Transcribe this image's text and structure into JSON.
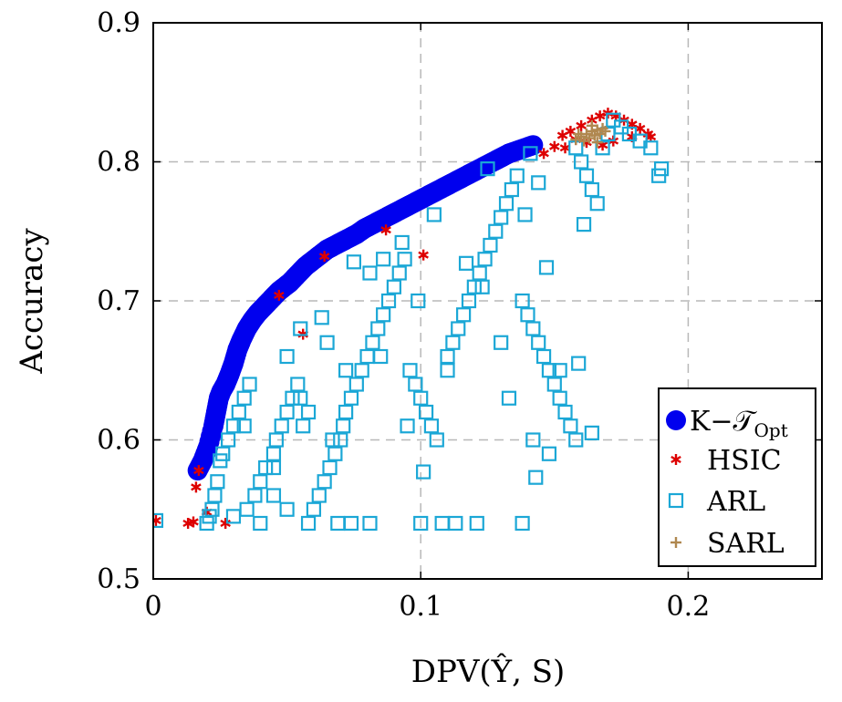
{
  "chart_data": {
    "type": "scatter",
    "xlabel": "DPV(Ŷ, S)",
    "ylabel": "Accuracy",
    "xlim": [
      0,
      0.25
    ],
    "ylim": [
      0.5,
      0.9
    ],
    "x_ticks": [
      "0",
      "0.1",
      "0.2"
    ],
    "x_tick_values": [
      0,
      0.1,
      0.2
    ],
    "y_ticks": [
      "0.5",
      "0.6",
      "0.7",
      "0.8",
      "0.9"
    ],
    "y_tick_values": [
      0.5,
      0.6,
      0.7,
      0.8,
      0.9
    ],
    "grid": true,
    "legend_position": "bottom-right",
    "series": [
      {
        "name": "K−T_Opt",
        "legend_label": "K−𝒯",
        "legend_subscript": "Opt",
        "marker": "circle",
        "color": "#0000ee",
        "points": [
          [
            0.0166,
            0.578
          ],
          [
            0.0185,
            0.585
          ],
          [
            0.0205,
            0.595
          ],
          [
            0.0225,
            0.61
          ],
          [
            0.0235,
            0.62
          ],
          [
            0.0245,
            0.63
          ],
          [
            0.0255,
            0.635
          ],
          [
            0.027,
            0.64
          ],
          [
            0.0285,
            0.647
          ],
          [
            0.03,
            0.655
          ],
          [
            0.0315,
            0.665
          ],
          [
            0.033,
            0.672
          ],
          [
            0.035,
            0.68
          ],
          [
            0.037,
            0.686
          ],
          [
            0.039,
            0.691
          ],
          [
            0.041,
            0.695
          ],
          [
            0.043,
            0.699
          ],
          [
            0.045,
            0.703
          ],
          [
            0.047,
            0.707
          ],
          [
            0.049,
            0.71
          ],
          [
            0.051,
            0.713
          ],
          [
            0.053,
            0.717
          ],
          [
            0.055,
            0.721
          ],
          [
            0.057,
            0.725
          ],
          [
            0.059,
            0.728
          ],
          [
            0.061,
            0.731
          ],
          [
            0.063,
            0.734
          ],
          [
            0.065,
            0.737
          ],
          [
            0.067,
            0.739
          ],
          [
            0.07,
            0.742
          ],
          [
            0.073,
            0.745
          ],
          [
            0.076,
            0.748
          ],
          [
            0.079,
            0.752
          ],
          [
            0.082,
            0.755
          ],
          [
            0.085,
            0.758
          ],
          [
            0.088,
            0.761
          ],
          [
            0.091,
            0.764
          ],
          [
            0.094,
            0.767
          ],
          [
            0.097,
            0.77
          ],
          [
            0.1,
            0.773
          ],
          [
            0.103,
            0.776
          ],
          [
            0.106,
            0.779
          ],
          [
            0.109,
            0.782
          ],
          [
            0.112,
            0.785
          ],
          [
            0.115,
            0.788
          ],
          [
            0.118,
            0.791
          ],
          [
            0.121,
            0.794
          ],
          [
            0.124,
            0.797
          ],
          [
            0.127,
            0.8
          ],
          [
            0.13,
            0.803
          ],
          [
            0.133,
            0.806
          ],
          [
            0.136,
            0.808
          ],
          [
            0.139,
            0.81
          ],
          [
            0.142,
            0.812
          ]
        ]
      },
      {
        "name": "HSIC",
        "marker": "star",
        "color": "#dd0000",
        "points": [
          [
            0.001,
            0.542
          ],
          [
            0.013,
            0.54
          ],
          [
            0.015,
            0.541
          ],
          [
            0.016,
            0.566
          ],
          [
            0.017,
            0.578
          ],
          [
            0.02,
            0.548
          ],
          [
            0.027,
            0.54
          ],
          [
            0.047,
            0.704
          ],
          [
            0.056,
            0.676
          ],
          [
            0.064,
            0.732
          ],
          [
            0.087,
            0.751
          ],
          [
            0.101,
            0.733
          ],
          [
            0.146,
            0.806
          ],
          [
            0.15,
            0.811
          ],
          [
            0.153,
            0.819
          ],
          [
            0.156,
            0.822
          ],
          [
            0.16,
            0.826
          ],
          [
            0.164,
            0.83
          ],
          [
            0.167,
            0.833
          ],
          [
            0.17,
            0.835
          ],
          [
            0.173,
            0.833
          ],
          [
            0.176,
            0.83
          ],
          [
            0.179,
            0.827
          ],
          [
            0.182,
            0.824
          ],
          [
            0.185,
            0.82
          ],
          [
            0.172,
            0.815
          ],
          [
            0.168,
            0.812
          ],
          [
            0.162,
            0.814
          ],
          [
            0.158,
            0.816
          ],
          [
            0.179,
            0.818
          ],
          [
            0.154,
            0.81
          ],
          [
            0.186,
            0.818
          ]
        ]
      },
      {
        "name": "ARL",
        "marker": "square",
        "color": "#1ba7d6",
        "points": [
          [
            0.001,
            0.542
          ],
          [
            0.02,
            0.54
          ],
          [
            0.021,
            0.545
          ],
          [
            0.022,
            0.55
          ],
          [
            0.023,
            0.56
          ],
          [
            0.024,
            0.57
          ],
          [
            0.025,
            0.585
          ],
          [
            0.026,
            0.59
          ],
          [
            0.028,
            0.6
          ],
          [
            0.03,
            0.61
          ],
          [
            0.032,
            0.62
          ],
          [
            0.034,
            0.63
          ],
          [
            0.036,
            0.64
          ],
          [
            0.038,
            0.56
          ],
          [
            0.04,
            0.57
          ],
          [
            0.042,
            0.58
          ],
          [
            0.045,
            0.59
          ],
          [
            0.046,
            0.6
          ],
          [
            0.048,
            0.61
          ],
          [
            0.05,
            0.62
          ],
          [
            0.052,
            0.63
          ],
          [
            0.054,
            0.64
          ],
          [
            0.056,
            0.61
          ],
          [
            0.058,
            0.54
          ],
          [
            0.06,
            0.55
          ],
          [
            0.062,
            0.56
          ],
          [
            0.064,
            0.57
          ],
          [
            0.066,
            0.58
          ],
          [
            0.068,
            0.59
          ],
          [
            0.07,
            0.6
          ],
          [
            0.071,
            0.61
          ],
          [
            0.072,
            0.62
          ],
          [
            0.074,
            0.63
          ],
          [
            0.076,
            0.64
          ],
          [
            0.078,
            0.65
          ],
          [
            0.08,
            0.66
          ],
          [
            0.082,
            0.67
          ],
          [
            0.084,
            0.68
          ],
          [
            0.086,
            0.69
          ],
          [
            0.088,
            0.7
          ],
          [
            0.09,
            0.71
          ],
          [
            0.092,
            0.72
          ],
          [
            0.094,
            0.73
          ],
          [
            0.096,
            0.65
          ],
          [
            0.098,
            0.64
          ],
          [
            0.1,
            0.63
          ],
          [
            0.102,
            0.62
          ],
          [
            0.104,
            0.61
          ],
          [
            0.106,
            0.6
          ],
          [
            0.108,
            0.54
          ],
          [
            0.11,
            0.66
          ],
          [
            0.112,
            0.67
          ],
          [
            0.114,
            0.68
          ],
          [
            0.116,
            0.69
          ],
          [
            0.118,
            0.7
          ],
          [
            0.12,
            0.71
          ],
          [
            0.122,
            0.72
          ],
          [
            0.124,
            0.73
          ],
          [
            0.126,
            0.74
          ],
          [
            0.128,
            0.75
          ],
          [
            0.13,
            0.76
          ],
          [
            0.132,
            0.77
          ],
          [
            0.134,
            0.78
          ],
          [
            0.136,
            0.79
          ],
          [
            0.138,
            0.7
          ],
          [
            0.14,
            0.69
          ],
          [
            0.142,
            0.68
          ],
          [
            0.144,
            0.67
          ],
          [
            0.146,
            0.66
          ],
          [
            0.148,
            0.65
          ],
          [
            0.15,
            0.64
          ],
          [
            0.152,
            0.63
          ],
          [
            0.154,
            0.62
          ],
          [
            0.156,
            0.61
          ],
          [
            0.158,
            0.6
          ],
          [
            0.16,
            0.8
          ],
          [
            0.162,
            0.79
          ],
          [
            0.164,
            0.78
          ],
          [
            0.166,
            0.77
          ],
          [
            0.168,
            0.81
          ],
          [
            0.17,
            0.82
          ],
          [
            0.172,
            0.83
          ],
          [
            0.175,
            0.825
          ],
          [
            0.178,
            0.82
          ],
          [
            0.182,
            0.815
          ],
          [
            0.186,
            0.81
          ],
          [
            0.189,
            0.79
          ],
          [
            0.19,
            0.795
          ],
          [
            0.075,
            0.728
          ],
          [
            0.081,
            0.72
          ],
          [
            0.086,
            0.73
          ],
          [
            0.093,
            0.742
          ],
          [
            0.099,
            0.7
          ],
          [
            0.105,
            0.762
          ],
          [
            0.117,
            0.727
          ],
          [
            0.125,
            0.795
          ],
          [
            0.141,
            0.806
          ],
          [
            0.158,
            0.81
          ],
          [
            0.164,
            0.605
          ],
          [
            0.142,
            0.6
          ],
          [
            0.148,
            0.59
          ],
          [
            0.101,
            0.577
          ],
          [
            0.063,
            0.688
          ],
          [
            0.05,
            0.66
          ],
          [
            0.055,
            0.68
          ],
          [
            0.034,
            0.61
          ],
          [
            0.045,
            0.56
          ],
          [
            0.058,
            0.62
          ],
          [
            0.067,
            0.6
          ],
          [
            0.072,
            0.65
          ],
          [
            0.074,
            0.54
          ],
          [
            0.081,
            0.54
          ],
          [
            0.1,
            0.54
          ],
          [
            0.113,
            0.54
          ],
          [
            0.121,
            0.54
          ],
          [
            0.138,
            0.54
          ],
          [
            0.069,
            0.54
          ],
          [
            0.05,
            0.55
          ],
          [
            0.04,
            0.54
          ],
          [
            0.03,
            0.545
          ],
          [
            0.035,
            0.55
          ],
          [
            0.045,
            0.58
          ],
          [
            0.055,
            0.63
          ],
          [
            0.065,
            0.67
          ],
          [
            0.085,
            0.66
          ],
          [
            0.095,
            0.61
          ],
          [
            0.11,
            0.65
          ],
          [
            0.123,
            0.71
          ],
          [
            0.13,
            0.67
          ],
          [
            0.133,
            0.63
          ],
          [
            0.147,
            0.724
          ],
          [
            0.139,
            0.762
          ],
          [
            0.144,
            0.785
          ],
          [
            0.161,
            0.755
          ],
          [
            0.152,
            0.65
          ],
          [
            0.159,
            0.655
          ],
          [
            0.143,
            0.573
          ]
        ]
      },
      {
        "name": "SARL",
        "marker": "plus",
        "color": "#b08850",
        "points": [
          [
            0.158,
            0.816
          ],
          [
            0.16,
            0.818
          ],
          [
            0.162,
            0.82
          ],
          [
            0.164,
            0.822
          ],
          [
            0.166,
            0.823
          ],
          [
            0.168,
            0.824
          ],
          [
            0.161,
            0.815
          ],
          [
            0.163,
            0.817
          ],
          [
            0.165,
            0.819
          ],
          [
            0.167,
            0.82
          ],
          [
            0.169,
            0.822
          ],
          [
            0.159,
            0.82
          ],
          [
            0.164,
            0.826
          ],
          [
            0.166,
            0.814
          ]
        ]
      }
    ]
  }
}
